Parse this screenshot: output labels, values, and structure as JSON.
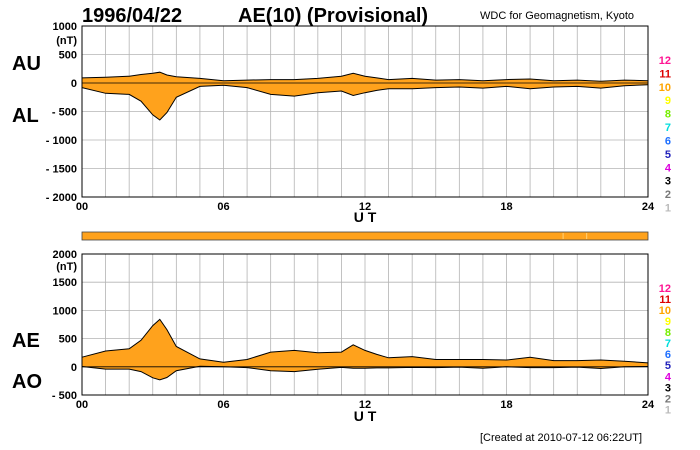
{
  "header": {
    "date": "1996/04/22",
    "title": "AE(10) (Provisional)",
    "source": "WDC for Geomagnetism, Kyoto"
  },
  "footer": {
    "created": "[Created at 2010-07-12 06:22UT]"
  },
  "colors": {
    "fill": "#ffa21c",
    "grid": "#b4b4b4",
    "scale": [
      "#ff1493",
      "#dd0000",
      "#ffa500",
      "#ffff00",
      "#77ee00",
      "#00dddd",
      "#1e6fff",
      "#2222bb",
      "#dd00dd",
      "#000000",
      "#777777",
      "#bbbbbb"
    ]
  },
  "station_scale": {
    "labels": [
      "12",
      "11",
      "10",
      "9",
      "8",
      "7",
      "6",
      "5",
      "4",
      "3",
      "2",
      "1"
    ]
  },
  "chart_data": [
    {
      "type": "area",
      "name": "AU/AL",
      "left_labels": [
        "AU",
        "AL"
      ],
      "y_unit": "(nT)",
      "yticks": [
        1000,
        500,
        0,
        -500,
        -1000,
        -1500,
        -2000
      ],
      "ytick_labels": [
        "1000",
        "500",
        "0",
        "- 500",
        "- 1000",
        "- 1500",
        "- 2000"
      ],
      "ylim": [
        -2000,
        1000
      ],
      "xlim": [
        0,
        24
      ],
      "xticks": [
        0,
        6,
        12,
        18,
        24
      ],
      "xtick_labels": [
        "00",
        "06",
        "12",
        "18",
        "24"
      ],
      "xlabel": "U T",
      "x": [
        0,
        1,
        2,
        2.5,
        3,
        3.3,
        3.6,
        4,
        5,
        6,
        7,
        8,
        9,
        10,
        11,
        11.5,
        12,
        12.5,
        13,
        14,
        15,
        16,
        17,
        18,
        19,
        20,
        21,
        22,
        23,
        24
      ],
      "series": [
        {
          "name": "AU",
          "values": [
            90,
            100,
            120,
            150,
            170,
            190,
            140,
            110,
            80,
            40,
            50,
            60,
            60,
            80,
            120,
            170,
            120,
            90,
            60,
            80,
            50,
            60,
            40,
            60,
            70,
            40,
            50,
            30,
            50,
            40
          ]
        },
        {
          "name": "AL",
          "values": [
            -80,
            -180,
            -200,
            -320,
            -560,
            -650,
            -520,
            -250,
            -60,
            -40,
            -80,
            -200,
            -230,
            -170,
            -140,
            -220,
            -170,
            -130,
            -100,
            -100,
            -80,
            -70,
            -90,
            -60,
            -100,
            -70,
            -60,
            -90,
            -50,
            -30
          ]
        }
      ]
    },
    {
      "type": "area",
      "name": "AE/AO",
      "left_labels": [
        "AE",
        "AO"
      ],
      "y_unit": "(nT)",
      "yticks": [
        2000,
        1500,
        1000,
        500,
        0,
        -500
      ],
      "ytick_labels": [
        "2000",
        "1500",
        "1000",
        "500",
        "0",
        "- 500"
      ],
      "ylim": [
        -500,
        2000
      ],
      "xlim": [
        0,
        24
      ],
      "xticks": [
        0,
        6,
        12,
        18,
        24
      ],
      "xtick_labels": [
        "00",
        "06",
        "12",
        "18",
        "24"
      ],
      "xlabel": "U T",
      "x": [
        0,
        1,
        2,
        2.5,
        3,
        3.3,
        3.6,
        4,
        5,
        6,
        7,
        8,
        9,
        10,
        11,
        11.5,
        12,
        12.5,
        13,
        14,
        15,
        16,
        17,
        18,
        19,
        20,
        21,
        22,
        23,
        24
      ],
      "series": [
        {
          "name": "AE",
          "values": [
            170,
            280,
            320,
            470,
            730,
            840,
            660,
            360,
            140,
            80,
            130,
            260,
            290,
            250,
            260,
            390,
            290,
            220,
            160,
            180,
            130,
            130,
            130,
            120,
            170,
            110,
            110,
            120,
            100,
            70
          ]
        },
        {
          "name": "AO",
          "values": [
            5,
            -40,
            -40,
            -85,
            -195,
            -230,
            -190,
            -70,
            10,
            0,
            -15,
            -70,
            -85,
            -45,
            -10,
            -25,
            -25,
            -20,
            -20,
            -10,
            -15,
            -5,
            -25,
            0,
            -15,
            -15,
            -5,
            -30,
            0,
            5
          ]
        }
      ]
    }
  ]
}
